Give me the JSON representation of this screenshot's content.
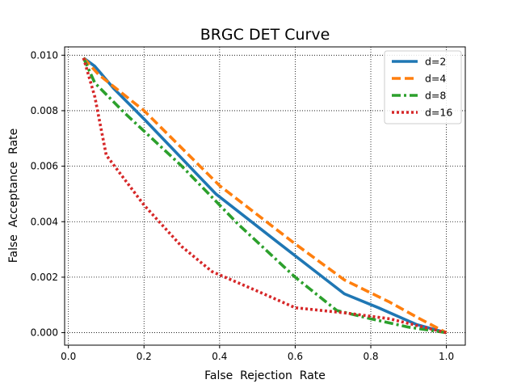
{
  "chart_data": {
    "type": "line",
    "title": "BRGC DET Curve",
    "xlabel": "False  Rejection  Rate",
    "ylabel": "False  Acceptance  Rate",
    "xlim": [
      -0.01,
      1.05
    ],
    "ylim": [
      -0.00045,
      0.0103
    ],
    "xticks": [
      0.0,
      0.2,
      0.4,
      0.6,
      0.8,
      1.0
    ],
    "xtick_labels": [
      "0.0",
      "0.2",
      "0.4",
      "0.6",
      "0.8",
      "1.0"
    ],
    "yticks": [
      0.0,
      0.002,
      0.004,
      0.006,
      0.008,
      0.01
    ],
    "ytick_labels": [
      "0.000",
      "0.002",
      "0.004",
      "0.006",
      "0.008",
      "0.010"
    ],
    "grid": true,
    "legend_position": "top-right",
    "series": [
      {
        "name": "d=2",
        "color": "#1f77b4",
        "style": "solid",
        "x": [
          0.04,
          0.07,
          0.12,
          0.2,
          0.39,
          0.55,
          0.73,
          0.82,
          0.92,
          1.0
        ],
        "y": [
          0.0099,
          0.0096,
          0.0088,
          0.0077,
          0.005,
          0.0033,
          0.0014,
          0.0009,
          0.0003,
          0.0
        ]
      },
      {
        "name": "d=4",
        "color": "#ff7f0e",
        "style": "dashed",
        "x": [
          0.04,
          0.08,
          0.2,
          0.4,
          0.6,
          0.73,
          0.85,
          0.93,
          1.0
        ],
        "y": [
          0.0099,
          0.0093,
          0.008,
          0.0053,
          0.0032,
          0.0019,
          0.0011,
          0.0005,
          0.0
        ]
      },
      {
        "name": "d=8",
        "color": "#2ca02c",
        "style": "dashdot",
        "x": [
          0.04,
          0.07,
          0.15,
          0.3,
          0.45,
          0.6,
          0.71,
          0.8,
          0.9,
          1.0
        ],
        "y": [
          0.0099,
          0.009,
          0.0079,
          0.006,
          0.0039,
          0.002,
          0.0008,
          0.0005,
          0.0002,
          0.0
        ]
      },
      {
        "name": "d=16",
        "color": "#d62728",
        "style": "dotted",
        "x": [
          0.04,
          0.07,
          0.1,
          0.2,
          0.3,
          0.38,
          0.5,
          0.6,
          0.74,
          0.85,
          1.0
        ],
        "y": [
          0.0099,
          0.0085,
          0.0064,
          0.0046,
          0.0031,
          0.0022,
          0.0015,
          0.0009,
          0.0007,
          0.0005,
          0.0
        ]
      }
    ]
  }
}
